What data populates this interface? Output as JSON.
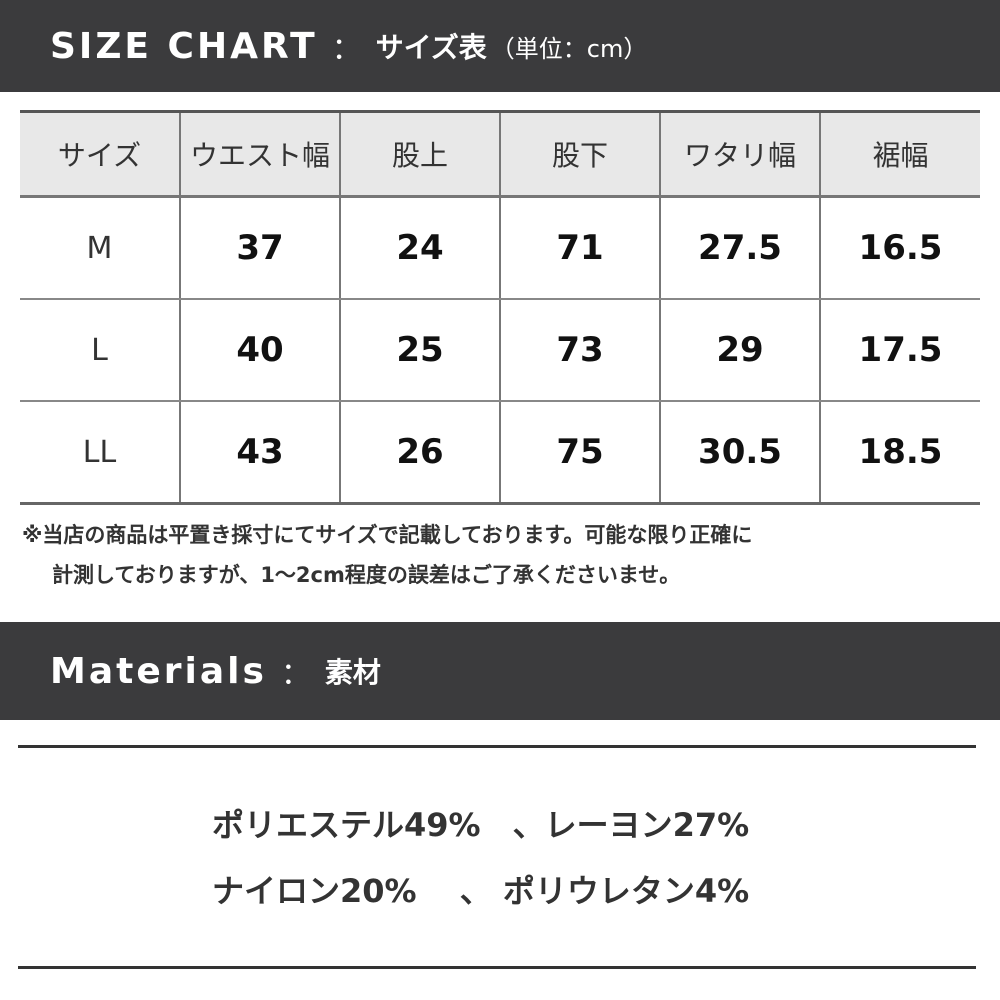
{
  "size_chart": {
    "title_en": "SIZE CHART",
    "separator": "：",
    "title_jp": "サイズ表",
    "unit": "（単位：cm）",
    "columns": [
      "サイズ",
      "ウエスト幅",
      "股上",
      "股下",
      "ワタリ幅",
      "裾幅"
    ],
    "rows": [
      [
        "M",
        "37",
        "24",
        "71",
        "27.5",
        "16.5"
      ],
      [
        "L",
        "40",
        "25",
        "73",
        "29",
        "17.5"
      ],
      [
        "LL",
        "43",
        "26",
        "75",
        "30.5",
        "18.5"
      ]
    ],
    "note_line1": "※当店の商品は平置き採寸にてサイズで記載しております。可能な限り正確に",
    "note_line2": "計測しておりますが、1～2cm程度の誤差はご了承くださいませ。"
  },
  "materials": {
    "title_en": "Materials",
    "separator": "：",
    "title_jp": "素材",
    "line1": "ポリエステル49%　、レーヨン27%",
    "line2": "ナイロン20%　 、 ポリウレタン4%"
  },
  "colors": {
    "header_bar": "#3b3b3d",
    "table_header_bg": "#e8e8e8"
  }
}
